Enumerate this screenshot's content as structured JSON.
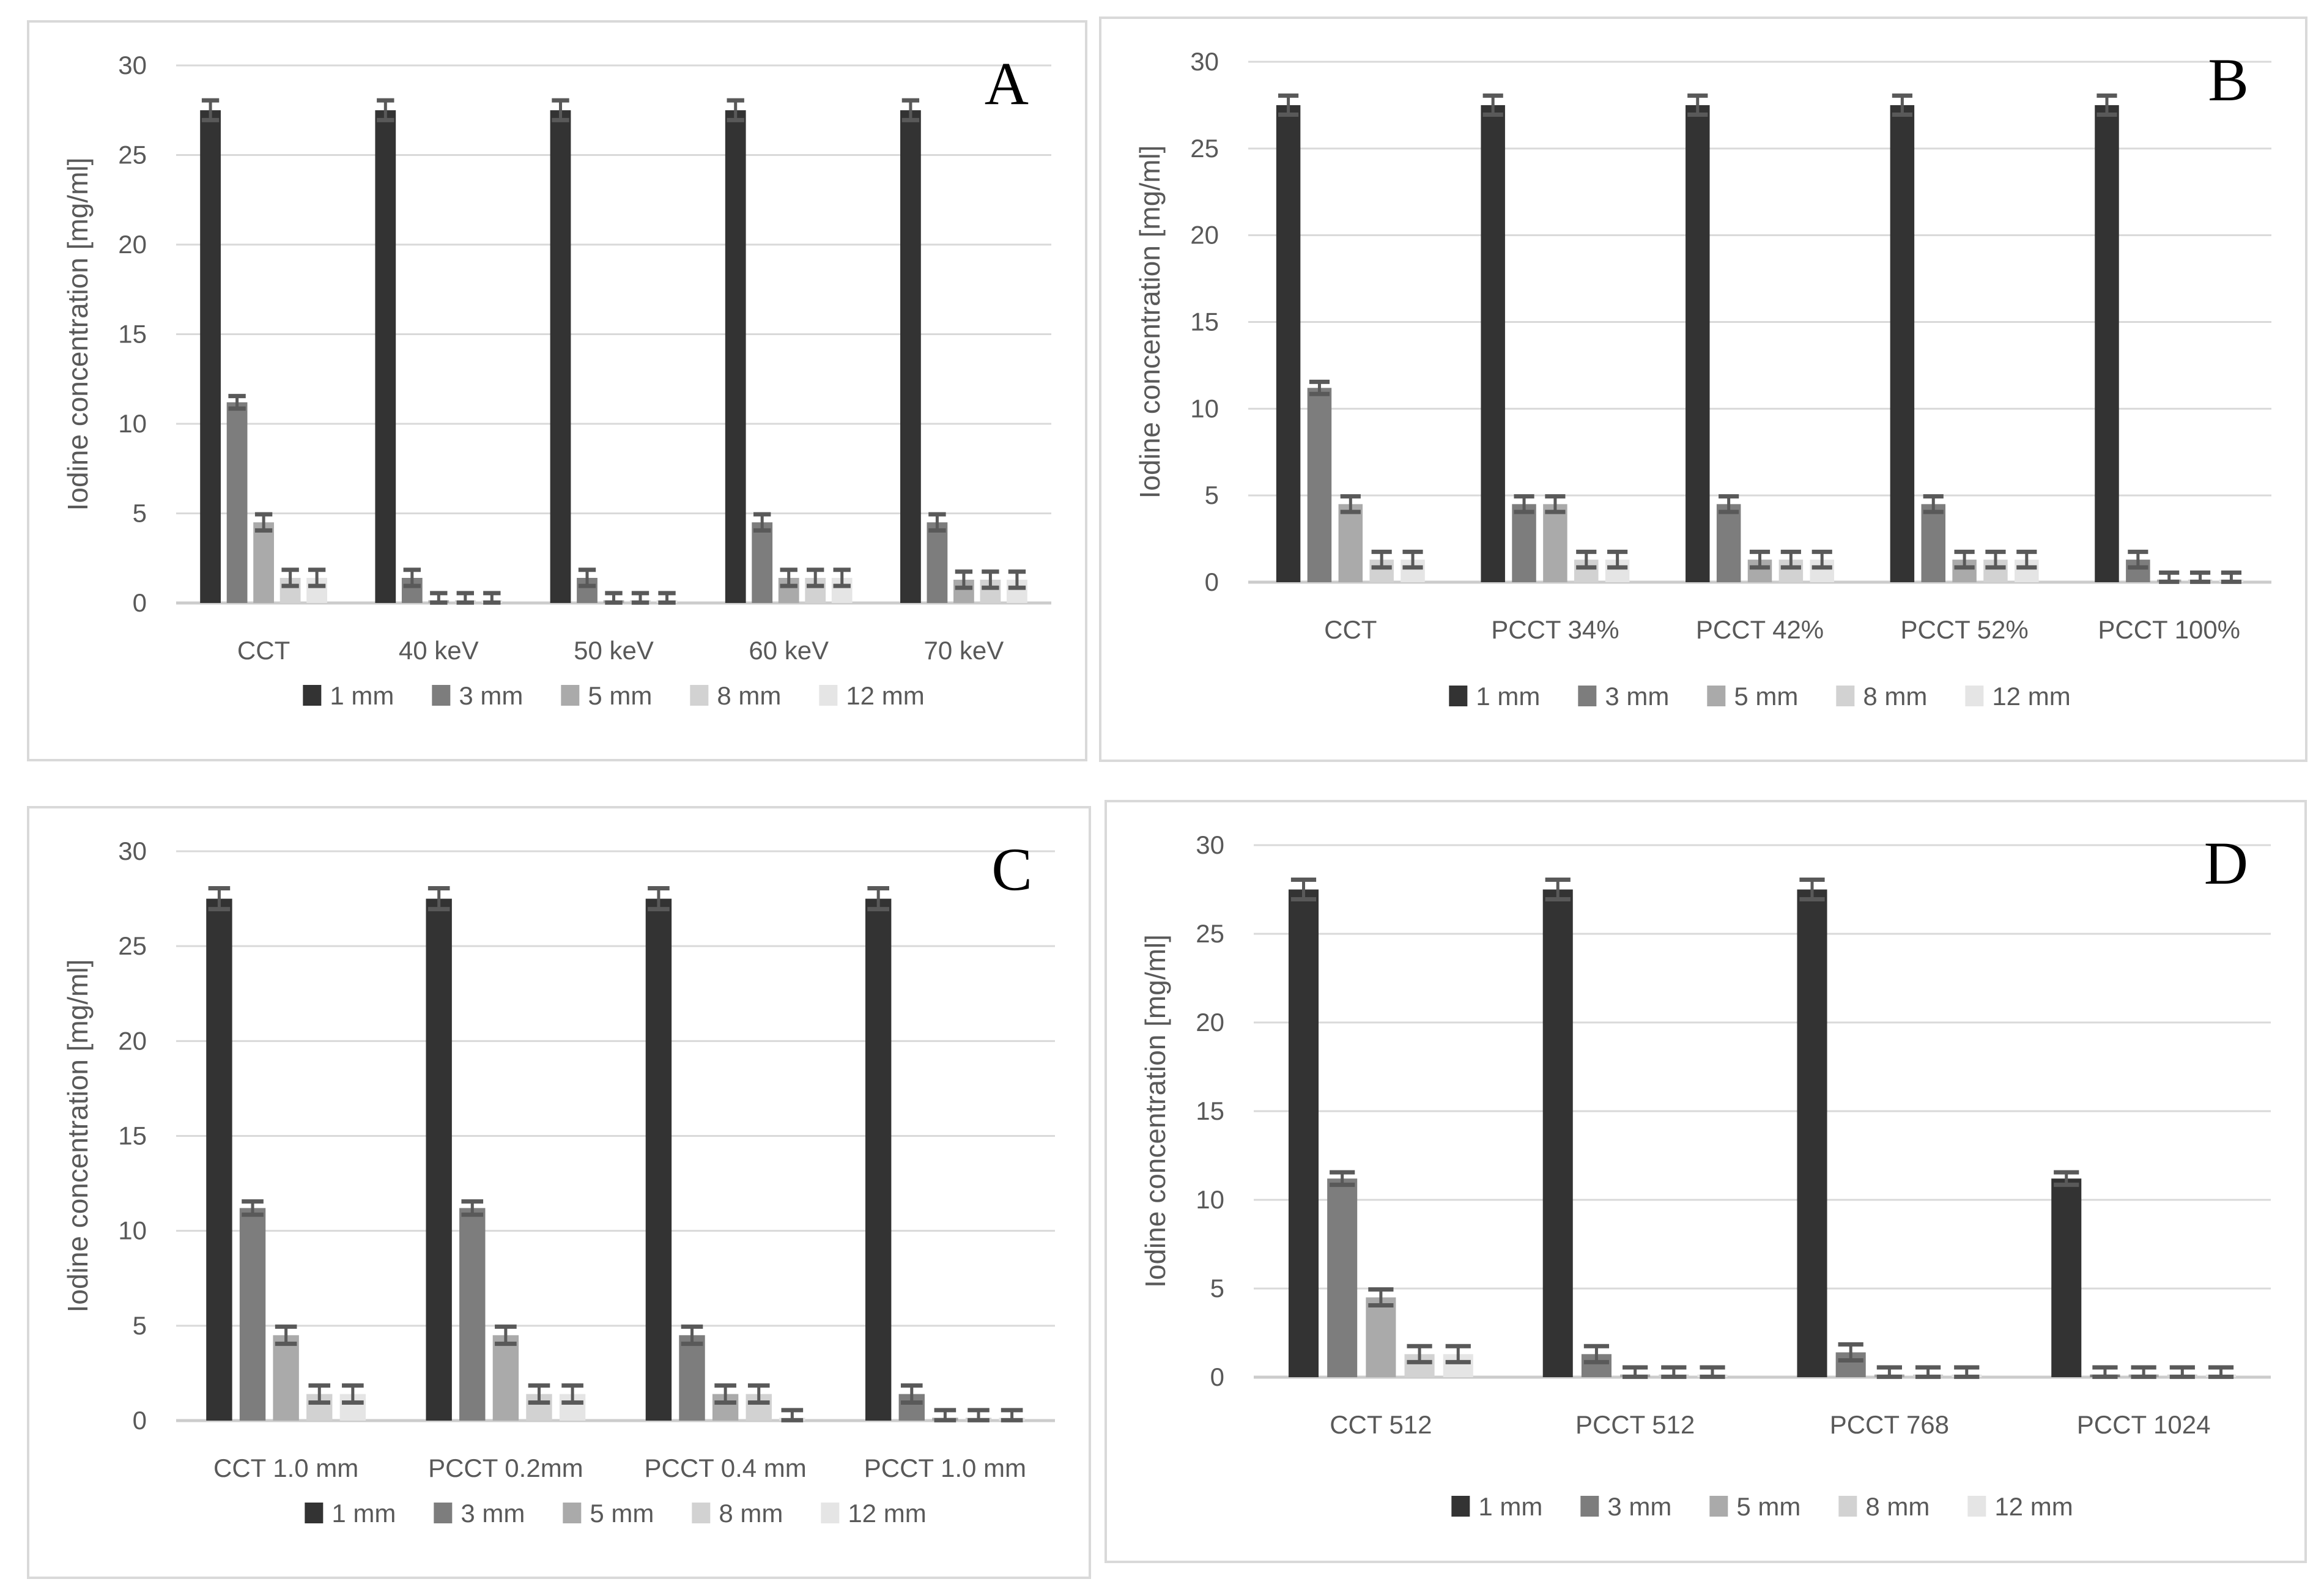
{
  "figure": {
    "background": "#ffffff",
    "panel_border_color": "#d9d9d9"
  },
  "colors": {
    "series": [
      "#333333",
      "#7d7d7d",
      "#aaaaaa",
      "#d2d2d2",
      "#e5e5e5"
    ],
    "axis_text": "#595959",
    "gridline": "#d9d9d9",
    "baseline": "#cccccc",
    "error_bar": "#595959",
    "panel_letter": "#000000"
  },
  "legend": {
    "labels": [
      "1 mm",
      "3 mm",
      "5 mm",
      "8 mm",
      "12 mm"
    ]
  },
  "chart_data": [
    {
      "panel": "A",
      "type": "bar",
      "title": "",
      "xlabel": "",
      "ylabel": "Iodine concentration [mg/ml]",
      "ylim": [
        0,
        30
      ],
      "yticks": [
        0,
        5,
        10,
        15,
        20,
        25,
        30
      ],
      "grid": "horizontal",
      "legend_position": "bottom",
      "categories": [
        "CCT",
        "40 keV",
        "50 keV",
        "60 keV",
        "70 keV"
      ],
      "series": [
        {
          "name": "1 mm",
          "values": [
            27.5,
            27.5,
            27.5,
            27.5,
            27.5
          ],
          "errors": [
            0.55,
            0.55,
            0.55,
            0.55,
            0.55
          ]
        },
        {
          "name": "3 mm",
          "values": [
            11.2,
            1.4,
            1.4,
            4.5,
            4.5
          ],
          "errors": [
            0.35,
            0.45,
            0.45,
            0.45,
            0.45
          ]
        },
        {
          "name": "5 mm",
          "values": [
            4.5,
            0.15,
            0.15,
            1.4,
            1.3
          ],
          "errors": [
            0.45,
            0.4,
            0.4,
            0.45,
            0.45
          ]
        },
        {
          "name": "8 mm",
          "values": [
            1.4,
            0.15,
            0.15,
            1.4,
            1.3
          ],
          "errors": [
            0.45,
            0.4,
            0.4,
            0.45,
            0.45
          ]
        },
        {
          "name": "12 mm",
          "values": [
            1.4,
            0.15,
            0.15,
            1.4,
            1.3
          ],
          "errors": [
            0.45,
            0.4,
            0.4,
            0.45,
            0.45
          ]
        }
      ]
    },
    {
      "panel": "B",
      "type": "bar",
      "title": "",
      "xlabel": "",
      "ylabel": "Iodine concentration [mg/ml]",
      "ylim": [
        0,
        30
      ],
      "yticks": [
        0,
        5,
        10,
        15,
        20,
        25,
        30
      ],
      "grid": "horizontal",
      "legend_position": "bottom",
      "categories": [
        "CCT",
        "PCCT 34%",
        "PCCT 42%",
        "PCCT 52%",
        "PCCT 100%"
      ],
      "series": [
        {
          "name": "1 mm",
          "values": [
            27.5,
            27.5,
            27.5,
            27.5,
            27.5
          ],
          "errors": [
            0.55,
            0.55,
            0.55,
            0.55,
            0.55
          ]
        },
        {
          "name": "3 mm",
          "values": [
            11.2,
            4.5,
            4.5,
            4.5,
            1.3
          ],
          "errors": [
            0.35,
            0.45,
            0.45,
            0.45,
            0.45
          ]
        },
        {
          "name": "5 mm",
          "values": [
            4.5,
            4.5,
            1.3,
            1.3,
            0.15
          ],
          "errors": [
            0.45,
            0.45,
            0.45,
            0.45,
            0.4
          ]
        },
        {
          "name": "8 mm",
          "values": [
            1.3,
            1.3,
            1.3,
            1.3,
            0.15
          ],
          "errors": [
            0.45,
            0.45,
            0.45,
            0.45,
            0.4
          ]
        },
        {
          "name": "12 mm",
          "values": [
            1.3,
            1.3,
            1.3,
            1.3,
            0.15
          ],
          "errors": [
            0.45,
            0.45,
            0.45,
            0.45,
            0.4
          ]
        }
      ]
    },
    {
      "panel": "C",
      "type": "bar",
      "title": "",
      "xlabel": "",
      "ylabel": "Iodine concentration [mg/ml]",
      "ylim": [
        0,
        30
      ],
      "yticks": [
        0,
        5,
        10,
        15,
        20,
        25,
        30
      ],
      "grid": "horizontal",
      "legend_position": "bottom",
      "categories": [
        "CCT 1.0 mm",
        "PCCT 0.2mm",
        "PCCT 0.4 mm",
        "PCCT 1.0 mm"
      ],
      "series": [
        {
          "name": "1 mm",
          "values": [
            27.5,
            27.5,
            27.5,
            27.5
          ],
          "errors": [
            0.55,
            0.55,
            0.55,
            0.55
          ]
        },
        {
          "name": "3 mm",
          "values": [
            11.2,
            11.2,
            4.5,
            1.4
          ],
          "errors": [
            0.35,
            0.35,
            0.45,
            0.45
          ]
        },
        {
          "name": "5 mm",
          "values": [
            4.5,
            4.5,
            1.4,
            0.15
          ],
          "errors": [
            0.45,
            0.45,
            0.45,
            0.4
          ]
        },
        {
          "name": "8 mm",
          "values": [
            1.4,
            1.4,
            1.4,
            0.15
          ],
          "errors": [
            0.45,
            0.45,
            0.45,
            0.4
          ]
        },
        {
          "name": "12 mm",
          "values": [
            1.4,
            1.4,
            0.15,
            0.15
          ],
          "errors": [
            0.45,
            0.45,
            0.4,
            0.4
          ]
        }
      ]
    },
    {
      "panel": "D",
      "type": "bar",
      "title": "",
      "xlabel": "",
      "ylabel": "Iodine concentration [mg/ml]",
      "ylim": [
        0,
        30
      ],
      "yticks": [
        0,
        5,
        10,
        15,
        20,
        25,
        30
      ],
      "grid": "horizontal",
      "legend_position": "bottom",
      "categories": [
        "CCT 512",
        "PCCT 512",
        "PCCT 768",
        "PCCT 1024"
      ],
      "series": [
        {
          "name": "1 mm",
          "values": [
            27.5,
            27.5,
            27.5,
            11.2
          ],
          "errors": [
            0.55,
            0.55,
            0.55,
            0.35
          ]
        },
        {
          "name": "3 mm",
          "values": [
            11.2,
            1.3,
            1.4,
            0.15
          ],
          "errors": [
            0.35,
            0.45,
            0.45,
            0.4
          ]
        },
        {
          "name": "5 mm",
          "values": [
            4.5,
            0.15,
            0.15,
            0.15
          ],
          "errors": [
            0.45,
            0.4,
            0.4,
            0.4
          ]
        },
        {
          "name": "8 mm",
          "values": [
            1.3,
            0.15,
            0.15,
            0.15
          ],
          "errors": [
            0.45,
            0.4,
            0.4,
            0.4
          ]
        },
        {
          "name": "12 mm",
          "values": [
            1.3,
            0.15,
            0.15,
            0.15
          ],
          "errors": [
            0.45,
            0.4,
            0.4,
            0.4
          ]
        }
      ]
    }
  ]
}
